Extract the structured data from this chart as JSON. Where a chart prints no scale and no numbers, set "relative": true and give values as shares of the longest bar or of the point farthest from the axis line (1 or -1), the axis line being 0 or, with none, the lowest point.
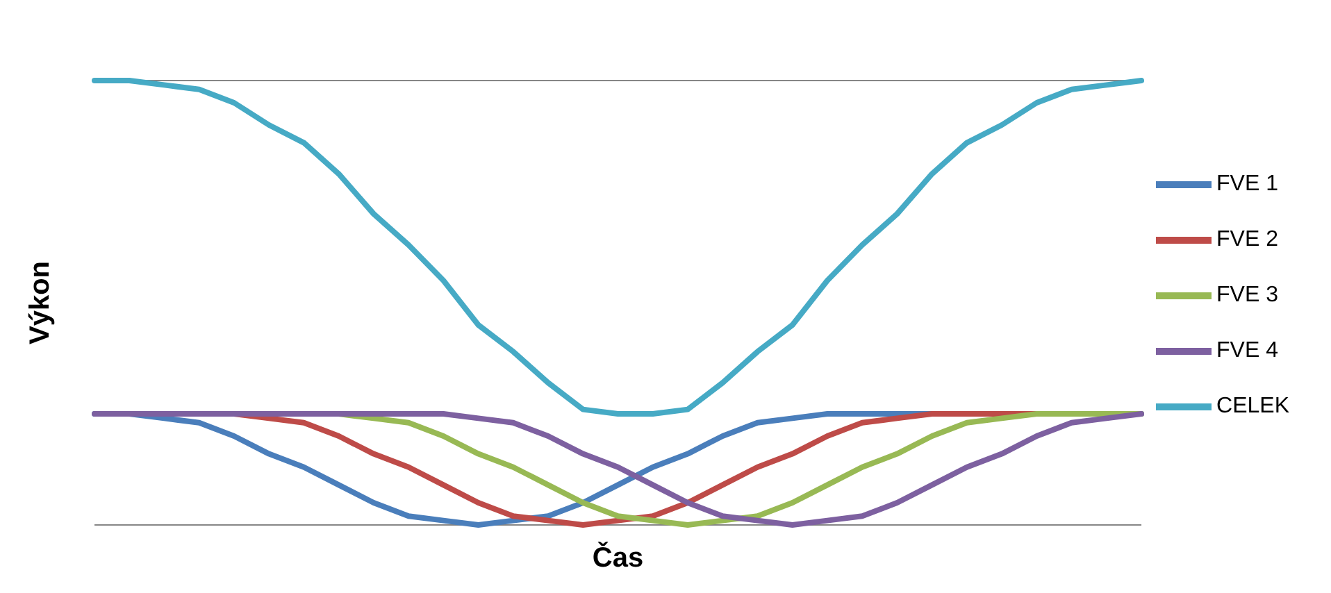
{
  "chart_data": {
    "type": "line",
    "relative": true,
    "xlabel": "Čas",
    "ylabel": "Výkon",
    "grid": "y",
    "legend": "right",
    "marker": "none",
    "categories": [
      null,
      null,
      null,
      null,
      null,
      null,
      null,
      null,
      null,
      null,
      null,
      null,
      null,
      null,
      null,
      null,
      null,
      null,
      null,
      null,
      null,
      null,
      null,
      null,
      null,
      null,
      null,
      null,
      null,
      null,
      null
    ],
    "series": [
      {
        "name": "FVE 1",
        "color": "#4a7ebb",
        "values": [
          0.25,
          0.25,
          0.24,
          0.23,
          0.2,
          0.16,
          0.13,
          0.09,
          0.05,
          0.02,
          0.01,
          0,
          0.01,
          0.02,
          0.05,
          0.09,
          0.13,
          0.16,
          0.2,
          0.23,
          0.24,
          0.25,
          0.25,
          0.25,
          0.25,
          0.25,
          0.25,
          0.25,
          0.25,
          0.25,
          0.25
        ]
      },
      {
        "name": "FVE 2",
        "color": "#be4b48",
        "values": [
          null,
          null,
          null,
          0.25,
          0.25,
          0.24,
          0.23,
          0.2,
          0.16,
          0.13,
          0.09,
          0.05,
          0.02,
          0.01,
          0,
          0.01,
          0.02,
          0.05,
          0.09,
          0.13,
          0.16,
          0.2,
          0.23,
          0.24,
          0.25,
          0.25,
          0.25,
          0.25,
          0.25,
          null,
          null
        ]
      },
      {
        "name": "FVE 3",
        "color": "#98b954",
        "values": [
          null,
          null,
          null,
          null,
          null,
          null,
          0.25,
          0.25,
          0.24,
          0.23,
          0.2,
          0.16,
          0.13,
          0.09,
          0.05,
          0.02,
          0.01,
          0,
          0.01,
          0.02,
          0.05,
          0.09,
          0.13,
          0.16,
          0.2,
          0.23,
          0.24,
          0.25,
          0.25,
          0.25,
          0.25
        ]
      },
      {
        "name": "FVE 4",
        "color": "#7d60a0",
        "values": [
          0.25,
          0.25,
          0.25,
          0.25,
          0.25,
          0.25,
          0.25,
          0.25,
          0.25,
          0.25,
          0.25,
          0.24,
          0.23,
          0.2,
          0.16,
          0.13,
          0.09,
          0.05,
          0.02,
          0.01,
          0,
          0.01,
          0.02,
          0.05,
          0.09,
          0.13,
          0.16,
          0.2,
          0.23,
          0.24,
          0.25
        ]
      },
      {
        "name": "CELEK",
        "color": "#46aac5",
        "values": [
          1,
          1,
          0.99,
          0.98,
          0.95,
          0.9,
          0.86,
          0.79,
          0.7,
          0.63,
          0.55,
          0.45,
          0.39,
          0.32,
          0.26,
          0.25,
          0.25,
          0.26,
          0.32,
          0.39,
          0.45,
          0.55,
          0.63,
          0.7,
          0.79,
          0.86,
          0.9,
          0.95,
          0.98,
          0.99,
          1
        ]
      }
    ]
  }
}
